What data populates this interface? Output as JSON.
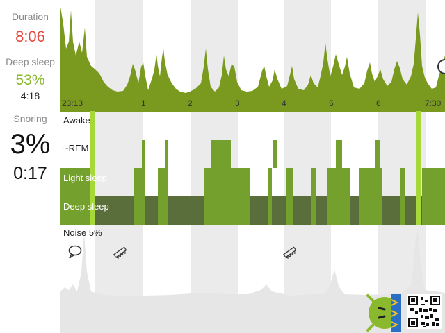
{
  "left_panel": {
    "duration_label": "Duration",
    "duration_value": "8:06",
    "deep_sleep_label": "Deep sleep",
    "deep_sleep_percent": "53%",
    "deep_sleep_time": "4:18",
    "snoring_label": "Snoring",
    "snoring_percent": "3%",
    "snoring_time": "0:17"
  },
  "colors": {
    "duration": "#e8463c",
    "deep_sleep": "#8ab92d",
    "actigraph_fill": "#7a9a1f",
    "hypno_green": "#74a02d",
    "deep_band": "#5a6e3c",
    "marker": "#a6d83a",
    "stripe": "#ebebeb"
  },
  "timeline": {
    "ticks": [
      "23:13",
      "1",
      "2",
      "3",
      "4",
      "5",
      "6",
      "7:30"
    ]
  },
  "hypnogram": {
    "levels": [
      "Awake",
      "~REM",
      "Light sleep",
      "Deep sleep"
    ]
  },
  "noise": {
    "label": "Noise 5%"
  },
  "icons": {
    "comment": "speech-bubble-icon",
    "snore_1": "saw-icon",
    "snore_2": "saw-icon",
    "mascot": "android-sleep-mascot",
    "qr": "qr-code"
  }
}
